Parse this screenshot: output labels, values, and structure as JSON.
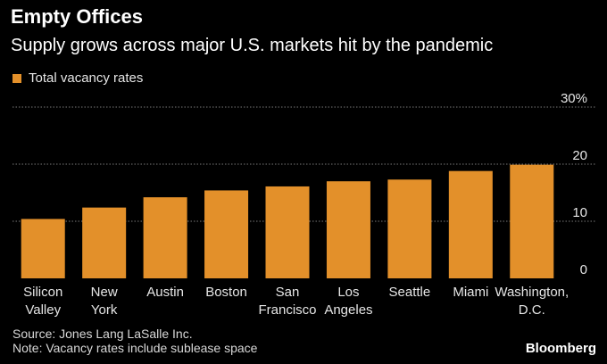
{
  "header": {
    "title": "Empty Offices",
    "subtitle": "Supply grows across major U.S. markets hit by the pandemic"
  },
  "footer": {
    "source": "Source: Jones Lang LaSalle Inc.",
    "note": "Note: Vacancy rates include sublease space",
    "brand": "Bloomberg"
  },
  "colors": {
    "bar": "#e3902a",
    "grid": "#7a7a7a",
    "tick_text": "#e6e6e6"
  },
  "chart_data": {
    "type": "bar",
    "title": "Empty Offices",
    "legend": [
      "Total vacancy rates"
    ],
    "legend_position": "top-left",
    "xlabel": "",
    "ylabel": "",
    "ylim": [
      0,
      30
    ],
    "yticks": [
      0,
      10,
      20,
      30
    ],
    "ytick_labels": [
      "0",
      "10",
      "20",
      "30%"
    ],
    "grid": true,
    "categories": [
      [
        "Silicon",
        "Valley"
      ],
      [
        "New",
        "York"
      ],
      [
        "Austin"
      ],
      [
        "Boston"
      ],
      [
        "San",
        "Francisco"
      ],
      [
        "Los",
        "Angeles"
      ],
      [
        "Seattle"
      ],
      [
        "Miami"
      ],
      [
        "Washington,",
        "D.C."
      ]
    ],
    "series": [
      {
        "name": "Total vacancy rates",
        "values": [
          10.4,
          12.4,
          14.2,
          15.4,
          16.1,
          17.0,
          17.3,
          18.8,
          19.9
        ]
      }
    ]
  }
}
